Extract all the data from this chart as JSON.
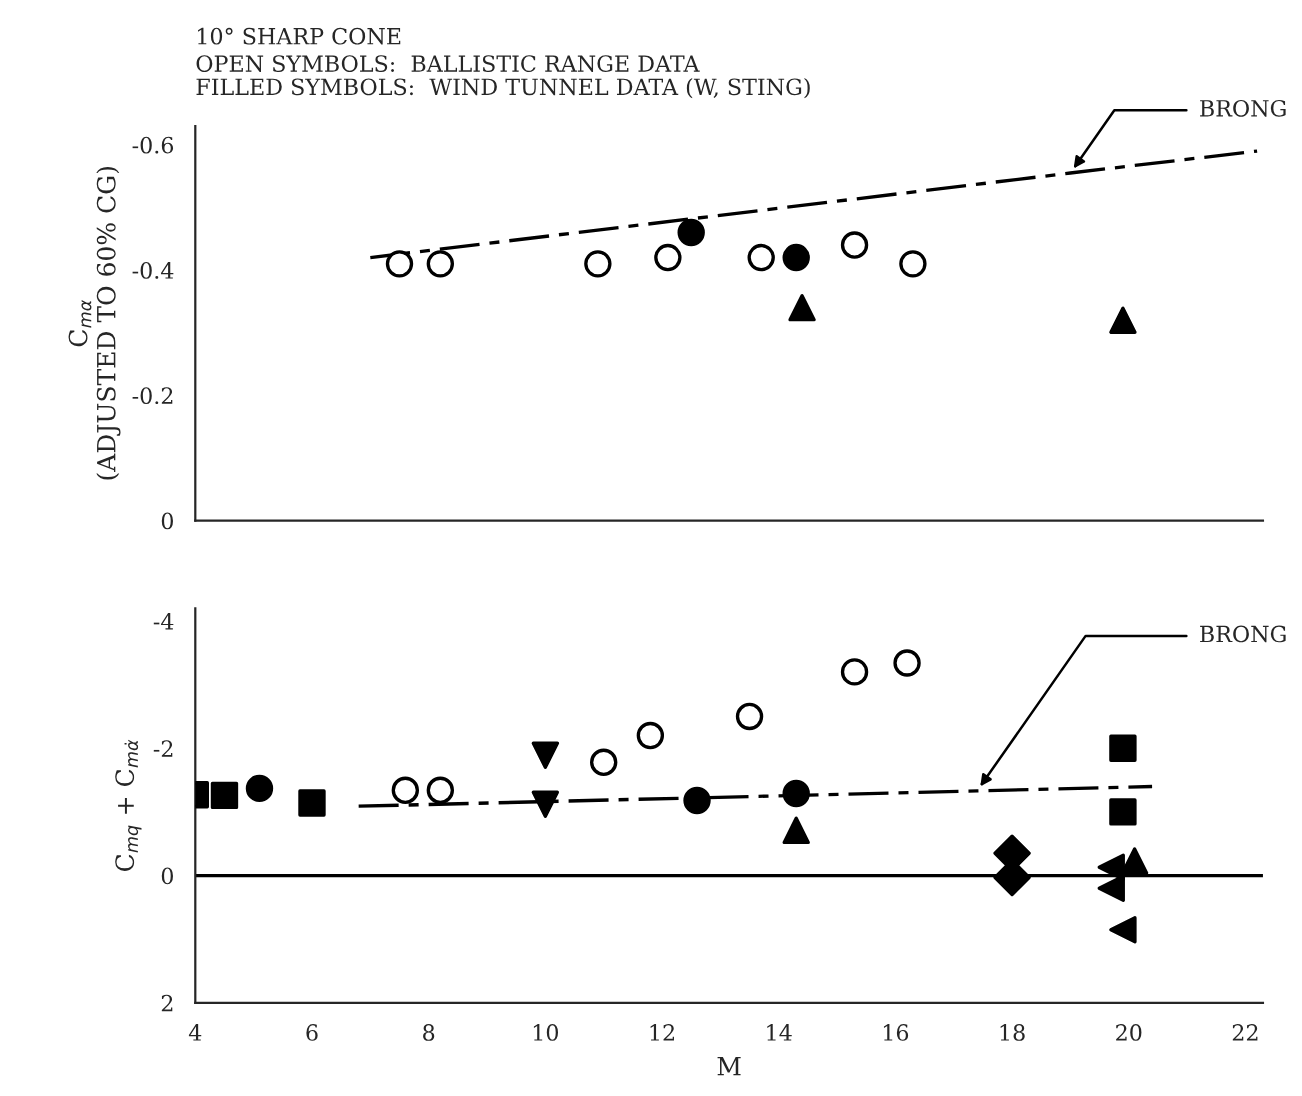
{
  "chart_data": [
    {
      "type": "scatter",
      "title": "10° SHARP CONE",
      "subtitle": "OPEN SYMBOLS:  BALLISTIC RANGE DATA\nFILLED SYMBOLS:  WIND TUNNEL DATA (W, STING)",
      "ylabel": "C$_{mα}$\n(ADJUSTED TO 60% CG)",
      "xlim": [
        4,
        22.3
      ],
      "xticks": [
        4,
        6,
        8,
        10,
        12,
        14,
        16,
        18,
        20,
        22
      ],
      "ylim": [
        0,
        -0.63
      ],
      "yticks": [
        0,
        -0.2,
        -0.4,
        -0.6
      ],
      "tick_labels": "y",
      "grid": false,
      "legend": false,
      "series": [
        {
          "marker": "circle",
          "color": "#ffffff",
          "x": [
            7.5,
            8.2,
            10.9,
            12.1,
            13.7,
            15.3,
            16.3
          ],
          "values": [
            -0.41,
            -0.41,
            -0.41,
            -0.42,
            -0.42,
            -0.44,
            -0.41
          ]
        },
        {
          "marker": "circle",
          "color": "#000000",
          "x": [
            12.5,
            14.3
          ],
          "values": [
            -0.46,
            -0.42
          ]
        },
        {
          "marker": "triangle",
          "color": "#000000",
          "x": [
            14.4,
            19.9
          ],
          "values": [
            -0.34,
            -0.32
          ]
        },
        {
          "type": "line",
          "line_style": "dashed",
          "color": "#000000",
          "x": [
            7.0,
            19.0,
            22.2
          ],
          "values": [
            -0.42,
            -0.555,
            -0.59
          ]
        }
      ],
      "annotations": [
        {
          "text": "BRONG",
          "x": 19.0,
          "y": -0.555
        }
      ]
    },
    {
      "type": "scatter",
      "xlabel": "M",
      "ylabel": "C$_{mq}$ + C$_{mα̇}$",
      "xlim": [
        4,
        22.3
      ],
      "xticks": [
        4,
        6,
        8,
        10,
        12,
        14,
        16,
        18,
        20,
        22
      ],
      "ylim": [
        2,
        -4.2
      ],
      "yticks": [
        2,
        0,
        -2,
        -4
      ],
      "grid": false,
      "legend": false,
      "ref_lines": [
        {
          "axis": "y",
          "value": 0,
          "color": "#000000"
        }
      ],
      "series": [
        {
          "marker": "circle",
          "color": "#ffffff",
          "x": [
            7.6,
            8.2,
            11.0,
            11.8,
            13.5,
            15.3,
            16.2
          ],
          "values": [
            -1.34,
            -1.34,
            -1.78,
            -2.2,
            -2.5,
            -3.2,
            -3.34
          ]
        },
        {
          "marker": "square",
          "color": "#000000",
          "x": [
            4.0,
            4.5,
            6.0,
            19.9,
            19.9
          ],
          "values": [
            -1.27,
            -1.26,
            -1.14,
            -2.0,
            -1.0
          ]
        },
        {
          "marker": "circle",
          "color": "#000000",
          "x": [
            5.1,
            12.6,
            14.3
          ],
          "values": [
            -1.37,
            -1.18,
            -1.29
          ]
        },
        {
          "marker": "triangle-down",
          "color": "#000000",
          "x": [
            10.0,
            10.0
          ],
          "values": [
            -1.89,
            -1.12
          ]
        },
        {
          "marker": "triangle",
          "color": "#000000",
          "x": [
            14.3,
            20.1
          ],
          "values": [
            -0.71,
            -0.23
          ]
        },
        {
          "marker": "diamond",
          "color": "#000000",
          "x": [
            18.0,
            18.0
          ],
          "values": [
            -0.35,
            0.03
          ]
        },
        {
          "marker": "triangle-left",
          "color": "#000000",
          "x": [
            19.7,
            19.7,
            19.9
          ],
          "values": [
            -0.13,
            0.2,
            0.85
          ]
        },
        {
          "type": "line",
          "line_style": "dashed",
          "color": "#000000",
          "x": [
            6.8,
            17.4,
            20.4
          ],
          "values": [
            -1.09,
            -1.33,
            -1.4
          ]
        }
      ],
      "annotations": [
        {
          "text": "BRONG",
          "x": 17.4,
          "y": -1.33
        }
      ]
    }
  ]
}
